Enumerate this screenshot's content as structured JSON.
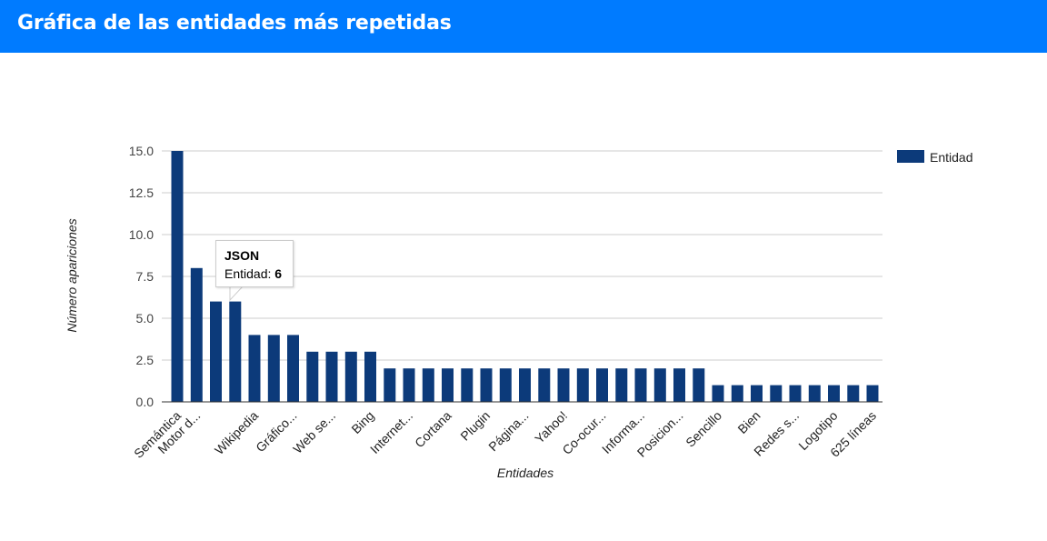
{
  "header": {
    "title": "Gráfica de las entidades más repetidas"
  },
  "colors": {
    "header_bg": "#007bff",
    "bar": "#0c3a7a",
    "grid": "#cccccc"
  },
  "chart_data": {
    "type": "bar",
    "xlabel": "Entidades",
    "ylabel": "Número apariciones",
    "ylim": [
      0,
      15
    ],
    "yticks": [
      "0.0",
      "2.5",
      "5.0",
      "7.5",
      "10.0",
      "12.5",
      "15.0"
    ],
    "grid": true,
    "legend": {
      "position": "right",
      "entries": [
        "Entidad"
      ]
    },
    "categories": [
      "Semántica",
      "Motor d...",
      "",
      "",
      "Wikipedia",
      "",
      "Gráfico...",
      "",
      "Web se...",
      "",
      "Bing",
      "",
      "Internet...",
      "",
      "Cortana",
      "",
      "Plugin",
      "",
      "Página...",
      "",
      "Yahoo!",
      "",
      "Co-ocur...",
      "",
      "Informa...",
      "",
      "Posicion...",
      "",
      "Sencillo",
      "",
      "Bien",
      "",
      "Redes s...",
      "",
      "Logotipo",
      "",
      "625 líneas"
    ],
    "series": [
      {
        "name": "Entidad",
        "values": [
          15,
          8,
          6,
          6,
          4,
          4,
          4,
          3,
          3,
          3,
          3,
          2,
          2,
          2,
          2,
          2,
          2,
          2,
          2,
          2,
          2,
          2,
          2,
          2,
          2,
          2,
          2,
          2,
          1,
          1,
          1,
          1,
          1,
          1,
          1,
          1,
          1
        ]
      }
    ],
    "tooltip": {
      "title": "JSON",
      "label": "Entidad:",
      "value": "6"
    }
  }
}
